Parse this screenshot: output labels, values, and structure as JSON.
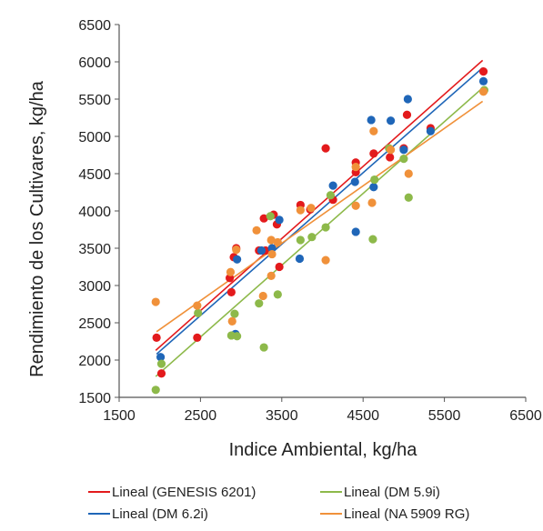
{
  "chart_data": {
    "type": "scatter",
    "title": "",
    "xlabel": "Indice Ambiental, kg/ha",
    "ylabel": "Rendimiento de los Cultivares, kg/ha",
    "xlim": [
      1500,
      6500
    ],
    "ylim": [
      1500,
      6500
    ],
    "xticks": [
      1500,
      2500,
      3500,
      4500,
      5500,
      6500
    ],
    "yticks": [
      1500,
      2000,
      2500,
      3000,
      3500,
      4000,
      4500,
      5000,
      5500,
      6000,
      6500
    ],
    "grid": false,
    "legend_position": "bottom",
    "series": [
      {
        "name": "GENESIS 6201",
        "color": "#e31a1c",
        "trend_label": "Lineal (GENESIS 6201)",
        "trend": [
          [
            1950,
            2130
          ],
          [
            5970,
            6020
          ]
        ],
        "points": [
          [
            1960,
            2300
          ],
          [
            2020,
            1820
          ],
          [
            2460,
            2300
          ],
          [
            2860,
            3100
          ],
          [
            2880,
            2910
          ],
          [
            2910,
            3380
          ],
          [
            2940,
            3500
          ],
          [
            3220,
            3470
          ],
          [
            3280,
            3900
          ],
          [
            3300,
            3470
          ],
          [
            3400,
            3950
          ],
          [
            3440,
            3820
          ],
          [
            3470,
            3250
          ],
          [
            3730,
            4080
          ],
          [
            3850,
            4020
          ],
          [
            4040,
            4840
          ],
          [
            4130,
            4150
          ],
          [
            4410,
            4650
          ],
          [
            4410,
            4520
          ],
          [
            4630,
            4770
          ],
          [
            4830,
            4720
          ],
          [
            5000,
            4840
          ],
          [
            5040,
            5290
          ],
          [
            5330,
            5110
          ],
          [
            5980,
            5870
          ]
        ]
      },
      {
        "name": "DM 6.2i",
        "color": "#1f66b8",
        "trend_label": "Lineal (DM 6.2i)",
        "trend": [
          [
            1960,
            2080
          ],
          [
            5970,
            5920
          ]
        ],
        "points": [
          [
            2010,
            2040
          ],
          [
            2930,
            2350
          ],
          [
            2950,
            3350
          ],
          [
            3250,
            3470
          ],
          [
            3380,
            3500
          ],
          [
            3470,
            3880
          ],
          [
            3720,
            3360
          ],
          [
            4130,
            4340
          ],
          [
            4400,
            4390
          ],
          [
            4410,
            3720
          ],
          [
            4600,
            5220
          ],
          [
            4630,
            4320
          ],
          [
            4840,
            5210
          ],
          [
            5000,
            4820
          ],
          [
            5050,
            5500
          ],
          [
            5330,
            5070
          ],
          [
            5980,
            5740
          ]
        ]
      },
      {
        "name": "DM 5.9i",
        "color": "#8db94a",
        "trend_label": "Lineal (DM 5.9i)",
        "trend": [
          [
            1950,
            1780
          ],
          [
            5970,
            5650
          ]
        ],
        "points": [
          [
            1950,
            1600
          ],
          [
            2020,
            1950
          ],
          [
            2470,
            2630
          ],
          [
            2880,
            2330
          ],
          [
            2920,
            2620
          ],
          [
            2950,
            2320
          ],
          [
            3220,
            2760
          ],
          [
            3280,
            2170
          ],
          [
            3360,
            3930
          ],
          [
            3450,
            2880
          ],
          [
            3730,
            3610
          ],
          [
            3870,
            3650
          ],
          [
            4040,
            3780
          ],
          [
            4100,
            4210
          ],
          [
            4620,
            3620
          ],
          [
            4640,
            4420
          ],
          [
            4820,
            4840
          ],
          [
            5000,
            4700
          ],
          [
            5060,
            4180
          ],
          [
            5990,
            5620
          ]
        ]
      },
      {
        "name": "NA 5909 RG",
        "color": "#f0913a",
        "trend_label": "Lineal (NA 5909 RG)",
        "trend": [
          [
            1960,
            2380
          ],
          [
            5970,
            5470
          ]
        ],
        "points": [
          [
            1950,
            2780
          ],
          [
            2460,
            2730
          ],
          [
            2870,
            3180
          ],
          [
            2890,
            2520
          ],
          [
            2940,
            3480
          ],
          [
            3190,
            3740
          ],
          [
            3270,
            2860
          ],
          [
            3370,
            3610
          ],
          [
            3370,
            3130
          ],
          [
            3380,
            3420
          ],
          [
            3450,
            3580
          ],
          [
            3730,
            4010
          ],
          [
            3860,
            4040
          ],
          [
            4040,
            3340
          ],
          [
            4410,
            4590
          ],
          [
            4410,
            4070
          ],
          [
            4610,
            4110
          ],
          [
            4630,
            5070
          ],
          [
            4840,
            4820
          ],
          [
            5060,
            4500
          ],
          [
            5980,
            5600
          ]
        ]
      }
    ]
  }
}
